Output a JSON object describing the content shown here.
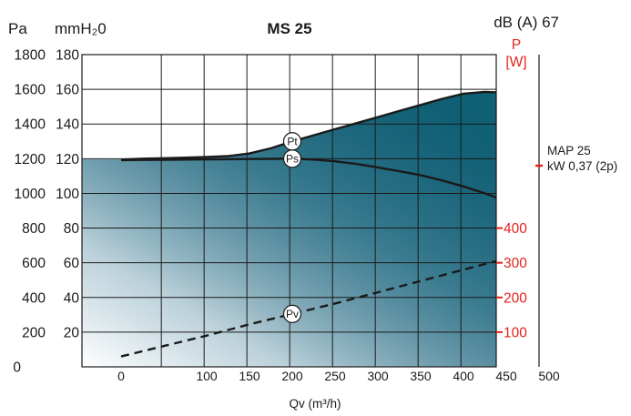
{
  "chart_data": {
    "type": "line",
    "title": "MS 25",
    "left_units": [
      "Pa",
      "mmH₂0"
    ],
    "sound_level_label": "dB (A) 67",
    "right_axis_label": [
      "P",
      "[W]"
    ],
    "xlabel": "Qv (m³/h)",
    "xlim": [
      0,
      500
    ],
    "x_ticks": [
      "0",
      "100",
      "150",
      "200",
      "250",
      "300",
      "350",
      "400",
      "450",
      "500"
    ],
    "y_ticks_pa": [
      "0",
      "200",
      "400",
      "600",
      "800",
      "1000",
      "1200",
      "1400",
      "1600",
      "1800"
    ],
    "y_ticks_mmh2o": [
      "20",
      "40",
      "60",
      "80",
      "100",
      "120",
      "140",
      "160",
      "180"
    ],
    "ylim": [
      0,
      180
    ],
    "power_ticks": [
      "100",
      "200",
      "300",
      "400"
    ],
    "motor": {
      "model": "MAP 25",
      "spec": "kW 0,37 (2p)"
    },
    "colors": {
      "fill": "#0d6478",
      "curve": "#1a1a1a",
      "power_axis": "#e2231a",
      "grid": "#1a1a1a"
    },
    "series": [
      {
        "name": "Pt",
        "x": [
          0,
          25,
          50,
          75,
          100,
          125,
          150,
          175,
          200,
          225,
          250,
          275,
          300,
          325,
          350,
          375,
          400,
          425,
          450,
          475,
          500
        ],
        "values": [
          119.5,
          120,
          120.3,
          120.6,
          121,
          121.5,
          123,
          126,
          130,
          133.5,
          137,
          140.5,
          144,
          147.5,
          151,
          154.5,
          157.5,
          158.5,
          158,
          157.8,
          157.5
        ]
      },
      {
        "name": "Ps",
        "x": [
          0,
          25,
          50,
          75,
          100,
          125,
          150,
          175,
          200,
          225,
          250,
          275,
          300,
          325,
          350,
          375,
          400,
          425,
          450,
          475,
          500
        ],
        "values": [
          119.2,
          119.3,
          119.4,
          119.5,
          119.6,
          119.7,
          119.8,
          119.9,
          120,
          119.5,
          118.5,
          117,
          115,
          112.8,
          110.5,
          107.5,
          104,
          100,
          95.5,
          91,
          86.5
        ]
      },
      {
        "name": "Pv",
        "x": [
          0,
          50,
          100,
          150,
          200,
          250,
          300,
          350,
          400,
          450,
          500
        ],
        "values": [
          6,
          12,
          18,
          24.5,
          30.5,
          36.5,
          43,
          49.5,
          56,
          62.5,
          68.5
        ]
      }
    ]
  }
}
